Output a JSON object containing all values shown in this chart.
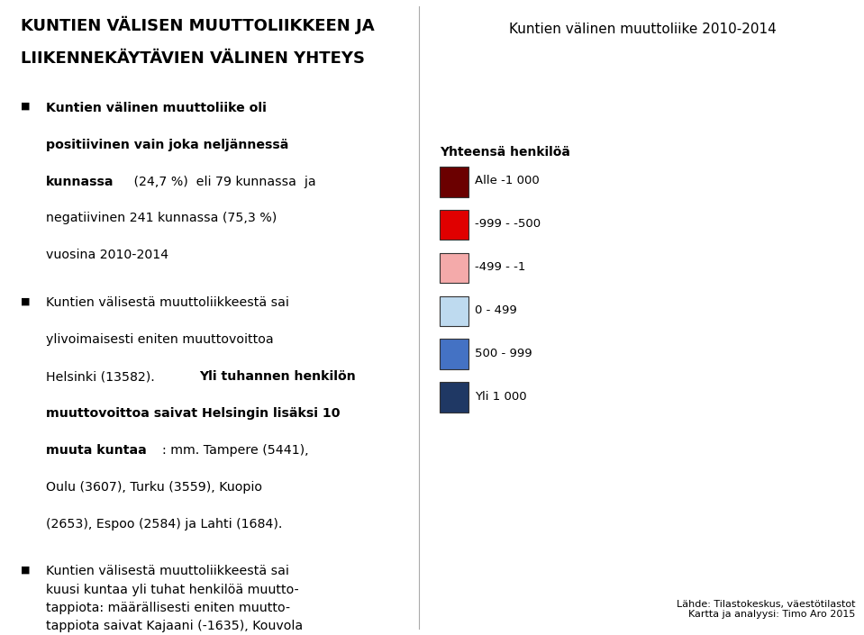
{
  "title_line1": "KUNTIEN VÄLISEN MUUTTOLIIKKEEN JA",
  "title_line2": "LIIKENNEKÄYTÄVIEN VÄLINEN YHTEYS",
  "map_title": "Kuntien välinen muuttoliike 2010-2014",
  "legend_title": "Yhteensä henkilöä",
  "legend_items": [
    {
      "label": "Alle -1 000",
      "color": "#6B0000"
    },
    {
      "label": "-999 - -500",
      "color": "#E00000"
    },
    {
      "label": "-499 - -1",
      "color": "#F4AAAA"
    },
    {
      "label": "0 - 499",
      "color": "#BEDAEF"
    },
    {
      "label": "500 - 999",
      "color": "#4472C4"
    },
    {
      "label": "Yli 1 000",
      "color": "#1F3864"
    }
  ],
  "source_text": "Lähde: Tilastokeskus, väestötilastot\nKartta ja analyysi: Timo Aro 2015",
  "bg_color": "#FFFFFF",
  "text_color": "#000000",
  "divider_color": "#AAAAAA"
}
